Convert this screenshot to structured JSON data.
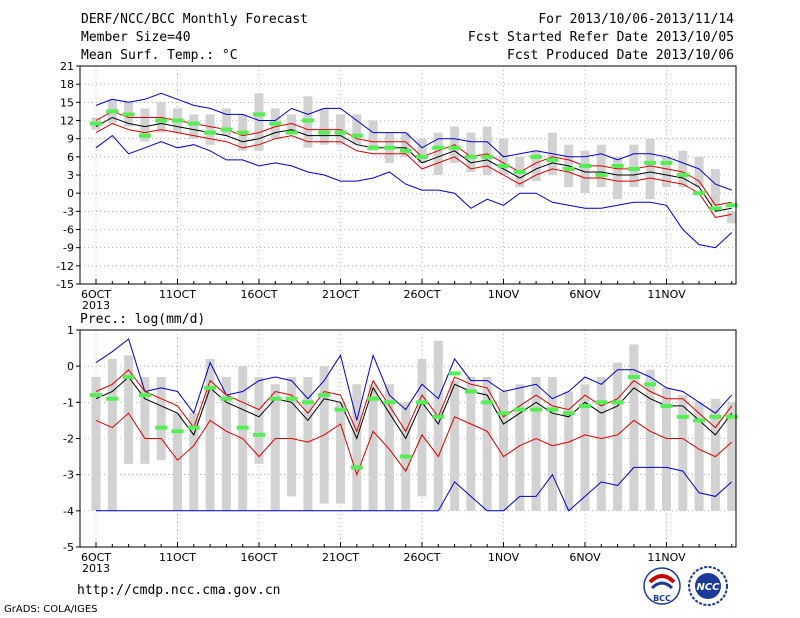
{
  "header": {
    "title": "DERF/NCC/BCC Monthly Forecast",
    "member": "Member Size=40",
    "variable": "Mean Surf. Temp.: °C",
    "range": "For 2013/10/06-2013/11/14",
    "started": "Fcst Started Refer Date 2013/10/05",
    "produced": "Fcst Produced Date 2013/10/06"
  },
  "footer": {
    "url": "http://cmdp.ncc.cma.gov.cn",
    "grads": "GrADS: COLA/IGES",
    "logo_bcc": "BCC",
    "logo_ncc": "NCC"
  },
  "colors": {
    "box": "#d2d2d2",
    "median": "#55ee55",
    "mean": "#000000",
    "sd": "#dd0000",
    "extreme": "#0000cc",
    "grid": "#888888"
  },
  "chart_data": [
    {
      "type": "box",
      "title": "",
      "ylabel": "",
      "ylim": [
        -15,
        21
      ],
      "yticks": [
        21,
        18,
        15,
        12,
        9,
        6,
        3,
        0,
        -3,
        -6,
        -9,
        -12,
        -15
      ],
      "x_tick_labels": [
        "6OCT",
        "11OCT",
        "16OCT",
        "21OCT",
        "26OCT",
        "1NOV",
        "6NOV",
        "11NOV"
      ],
      "x_year_label": "2013",
      "x_days": [
        "10/06",
        "10/07",
        "10/08",
        "10/09",
        "10/10",
        "10/11",
        "10/12",
        "10/13",
        "10/14",
        "10/15",
        "10/16",
        "10/17",
        "10/18",
        "10/19",
        "10/20",
        "10/21",
        "10/22",
        "10/23",
        "10/24",
        "10/25",
        "10/26",
        "10/27",
        "10/28",
        "10/29",
        "10/30",
        "10/31",
        "11/01",
        "11/02",
        "11/03",
        "11/04",
        "11/05",
        "11/06",
        "11/07",
        "11/08",
        "11/09",
        "11/10",
        "11/11",
        "11/12",
        "11/13",
        "11/14"
      ],
      "box_low": [
        10.5,
        11.5,
        11,
        8.5,
        10,
        10,
        9,
        8,
        9.5,
        7,
        7,
        9,
        10,
        7.5,
        8,
        8,
        8,
        7,
        5,
        6,
        5,
        3,
        5,
        3.5,
        3,
        3,
        1,
        2,
        3,
        1,
        0,
        1,
        -1,
        1,
        -1,
        1,
        1,
        1,
        -2,
        -5
      ],
      "box_high": [
        12.5,
        15.5,
        15,
        14,
        15,
        14,
        13,
        13,
        14,
        13,
        16.5,
        14,
        13,
        16,
        14,
        13,
        13,
        12,
        10,
        10,
        9,
        10,
        11,
        10,
        11,
        9,
        6,
        7,
        10,
        8,
        7,
        8,
        6,
        8,
        9,
        6,
        7,
        6,
        4,
        -3
      ],
      "median": [
        11.5,
        13.5,
        13,
        9.5,
        12,
        12,
        11.5,
        10,
        10.5,
        10,
        13,
        11.5,
        10,
        12,
        10,
        10,
        9.5,
        7.5,
        7.5,
        7,
        6,
        7.5,
        7.5,
        6,
        6,
        4.5,
        3.5,
        6,
        5.5,
        4,
        4.5,
        3,
        4.5,
        4,
        5,
        5,
        3,
        0,
        -2.5,
        -2
      ],
      "mean": [
        11,
        12.5,
        11.5,
        11,
        11.5,
        11,
        10.5,
        10,
        9.5,
        8.5,
        9,
        10,
        10.5,
        9.5,
        9.5,
        9.5,
        8,
        7.5,
        7.5,
        7.5,
        5,
        6,
        7,
        5,
        5.5,
        4,
        2.5,
        4,
        5,
        4.5,
        3.5,
        3.5,
        3,
        3,
        3.5,
        3,
        2.5,
        1,
        -3,
        -2.5
      ],
      "sd_high": [
        12,
        13.5,
        12.5,
        12.5,
        12.5,
        12,
        11.5,
        11,
        10.5,
        9.5,
        10,
        11,
        11.5,
        10.5,
        10.5,
        10.5,
        9,
        8.5,
        8.5,
        8.5,
        6,
        7,
        8,
        6,
        6.5,
        5,
        3.5,
        5,
        6,
        5.5,
        4.5,
        4.5,
        4,
        4,
        4.5,
        4,
        3.5,
        2,
        -2,
        -1.5
      ],
      "sd_low": [
        10,
        11.5,
        10.5,
        10,
        10.5,
        10,
        9.5,
        9,
        8.5,
        7.5,
        8,
        9,
        9.5,
        8.5,
        8.5,
        8.5,
        7,
        6.5,
        6.5,
        6.5,
        4,
        5,
        6,
        4,
        4.5,
        3,
        1.5,
        3,
        4,
        3.5,
        2.5,
        2.5,
        2,
        2,
        2.5,
        2,
        1.5,
        0,
        -4,
        -3.5
      ],
      "max": [
        14.5,
        15.5,
        15,
        15.5,
        16.5,
        15.5,
        14.5,
        14,
        13,
        13,
        12,
        12,
        14,
        13,
        14,
        14,
        12,
        10,
        10,
        10,
        7.5,
        9,
        9,
        8.5,
        8.5,
        6,
        6.5,
        7,
        6.5,
        6,
        6,
        6.5,
        5.5,
        6.5,
        6.5,
        6,
        5,
        4,
        1.5,
        0.5
      ],
      "min": [
        7.5,
        9.5,
        6.5,
        7.5,
        8.5,
        7.5,
        8,
        7,
        5.5,
        5.5,
        4.5,
        5,
        4.5,
        3.5,
        3,
        2,
        2,
        2.5,
        3.5,
        1.5,
        0.5,
        0.5,
        0,
        -2.5,
        -1,
        -2,
        0,
        0,
        -1.5,
        -2,
        -2.5,
        -2.5,
        -2,
        -1.5,
        -1.5,
        -2,
        -6,
        -8.5,
        -9,
        -6.5
      ]
    },
    {
      "type": "box",
      "title": "Prec.: log(mm/d)",
      "ylabel": "",
      "ylim": [
        -5,
        1
      ],
      "yticks": [
        1,
        0,
        -1,
        -2,
        -3,
        -4,
        -5
      ],
      "x_tick_labels": [
        "6OCT",
        "11OCT",
        "16OCT",
        "21OCT",
        "26OCT",
        "1NOV",
        "6NOV",
        "11NOV"
      ],
      "x_year_label": "2013",
      "x_days": [
        "10/06",
        "10/07",
        "10/08",
        "10/09",
        "10/10",
        "10/11",
        "10/12",
        "10/13",
        "10/14",
        "10/15",
        "10/16",
        "10/17",
        "10/18",
        "10/19",
        "10/20",
        "10/21",
        "10/22",
        "10/23",
        "10/24",
        "10/25",
        "10/26",
        "10/27",
        "10/28",
        "10/29",
        "10/30",
        "10/31",
        "11/01",
        "11/02",
        "11/03",
        "11/04",
        "11/05",
        "11/06",
        "11/07",
        "11/08",
        "11/09",
        "11/10",
        "11/11",
        "11/12",
        "11/13",
        "11/14"
      ],
      "box_low": [
        -4,
        -4,
        -2.7,
        -2.7,
        -2.6,
        -4,
        -4,
        -4,
        -4,
        -4,
        -2.7,
        -4,
        -3.6,
        -4,
        -3.8,
        -3.8,
        -4,
        -4,
        -4,
        -4,
        -3.6,
        -4,
        -4,
        -4,
        -4,
        -4,
        -4,
        -4,
        -4,
        -4,
        -4,
        -4,
        -4,
        -4,
        -4,
        -4,
        -4,
        -4,
        -4,
        -4
      ],
      "box_high": [
        -0.3,
        0.2,
        0.3,
        -0.3,
        -0.3,
        -1.3,
        -1.3,
        0.2,
        -0.3,
        0,
        -0.3,
        -0.5,
        -0.3,
        -0.3,
        0,
        -1,
        -0.5,
        -0.5,
        -0.5,
        -1,
        0.2,
        0.7,
        -0.4,
        -0.3,
        -0.3,
        -0.7,
        -0.5,
        -0.3,
        -0.3,
        -0.7,
        -0.5,
        -0.3,
        0.1,
        0.6,
        -0.1,
        -0.6,
        -0.8,
        -1,
        -0.9,
        -1
      ],
      "median": [
        -0.8,
        -0.9,
        -0.3,
        -0.8,
        -1.7,
        -1.8,
        -1.7,
        -0.6,
        -0.9,
        -1.7,
        -1.9,
        -0.9,
        -0.9,
        -1,
        -0.8,
        -1.2,
        -2.8,
        -0.9,
        -1,
        -2.5,
        -1,
        -1.4,
        -0.2,
        -0.7,
        -1,
        -1.3,
        -1.2,
        -1.2,
        -1.2,
        -1.3,
        -1.1,
        -1,
        -1,
        -0.3,
        -0.5,
        -1.1,
        -1.4,
        -1.5,
        -1.4,
        -1.4
      ],
      "mean": [
        -0.9,
        -0.7,
        -0.3,
        -0.9,
        -1.1,
        -1.3,
        -1.9,
        -0.6,
        -1,
        -1.2,
        -1.4,
        -0.9,
        -1,
        -1.5,
        -0.9,
        -1,
        -2,
        -0.6,
        -1.3,
        -2,
        -1,
        -1.6,
        -0.5,
        -0.7,
        -0.8,
        -1.6,
        -1.3,
        -1,
        -1.3,
        -1.4,
        -1,
        -1.3,
        -1.1,
        -0.6,
        -0.9,
        -1.1,
        -1.1,
        -1.5,
        -1.9,
        -1.3
      ],
      "sd_high": [
        -0.7,
        -0.5,
        -0.1,
        -0.7,
        -0.9,
        -1.1,
        -1.7,
        -0.4,
        -0.8,
        -1,
        -1.2,
        -0.7,
        -0.8,
        -1.3,
        -0.7,
        -0.8,
        -1.8,
        -0.4,
        -1.1,
        -1.8,
        -0.8,
        -1.4,
        -0.3,
        -0.5,
        -0.6,
        -1.4,
        -1.1,
        -0.8,
        -1.1,
        -1.2,
        -0.8,
        -1.1,
        -0.9,
        -0.4,
        -0.7,
        -0.9,
        -0.9,
        -1.3,
        -1.7,
        -1.1
      ],
      "sd_low": [
        -1.5,
        -1.7,
        -1.3,
        -2,
        -2,
        -2.6,
        -2.2,
        -1.5,
        -1.8,
        -2,
        -2.5,
        -2,
        -2,
        -2.1,
        -1.9,
        -1.6,
        -3,
        -1.8,
        -2.3,
        -2.9,
        -1.9,
        -2.5,
        -1.4,
        -1.6,
        -1.8,
        -2.5,
        -2.2,
        -2,
        -2.2,
        -2.1,
        -1.9,
        -2,
        -1.9,
        -1.5,
        -1.8,
        -2,
        -2,
        -2.3,
        -2.5,
        -2.1
      ],
      "max": [
        0.1,
        0.4,
        0.75,
        -0.7,
        -0.6,
        -0.7,
        -1.3,
        0.1,
        -0.8,
        -0.7,
        -0.4,
        -0.3,
        -0.4,
        -0.9,
        -0.4,
        0.3,
        -1.5,
        0.3,
        -0.8,
        -1.2,
        -0.5,
        -0.9,
        0.2,
        -0.4,
        -0.4,
        -0.7,
        -0.6,
        -0.5,
        -0.9,
        -0.7,
        -0.3,
        -0.5,
        -0.1,
        -0.1,
        -0.3,
        -0.6,
        -0.7,
        -1,
        -1.3,
        -0.8
      ],
      "min": [
        -4,
        -4,
        -4,
        -4,
        -4,
        -4,
        -4,
        -4,
        -4,
        -4,
        -4,
        -4,
        -4,
        -4,
        -4,
        -4,
        -4,
        -4,
        -4,
        -4,
        -4,
        -4,
        -3.2,
        -3.6,
        -4,
        -4,
        -3.6,
        -3.6,
        -3,
        -4,
        -3.6,
        -3.2,
        -3.3,
        -2.8,
        -2.8,
        -2.8,
        -2.9,
        -3.5,
        -3.6,
        -3.2
      ]
    }
  ]
}
